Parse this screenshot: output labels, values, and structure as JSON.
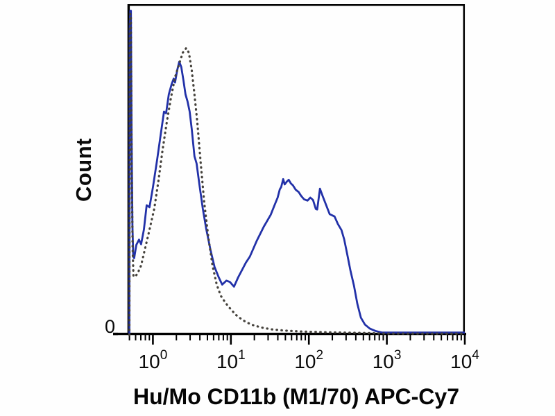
{
  "chart_data": {
    "type": "line",
    "subtype": "flow-cytometry-histogram-overlay",
    "title": "",
    "xlabel": "Hu/Mo CD11b (M1/70) APC-Cy7",
    "ylabel": "Count",
    "y_zero_label": "0",
    "x_scale": "log10",
    "x_tick_base": "10",
    "x_tick_exponents": [
      0,
      1,
      2,
      3,
      4
    ],
    "xlim_log10": [
      -0.324,
      4
    ],
    "ylim_fraction": [
      0,
      1
    ],
    "grid": false,
    "legend": "none",
    "axis_color": "#000000",
    "series": [
      {
        "name": "solid-blue-stained",
        "style": "solid",
        "color": "#2231a8",
        "points_log10x_yfrac": [
          [
            -0.302,
            0.0
          ],
          [
            -0.298,
            0.92
          ],
          [
            -0.291,
            0.98
          ],
          [
            -0.282,
            0.98
          ],
          [
            -0.273,
            0.6
          ],
          [
            -0.263,
            0.33
          ],
          [
            -0.252,
            0.236
          ],
          [
            -0.24,
            0.232
          ],
          [
            -0.213,
            0.272
          ],
          [
            -0.178,
            0.288
          ],
          [
            -0.151,
            0.274
          ],
          [
            -0.116,
            0.318
          ],
          [
            -0.08,
            0.392
          ],
          [
            -0.044,
            0.386
          ],
          [
            0.0,
            0.446
          ],
          [
            0.053,
            0.528
          ],
          [
            0.098,
            0.602
          ],
          [
            0.142,
            0.675
          ],
          [
            0.169,
            0.67
          ],
          [
            0.204,
            0.727
          ],
          [
            0.24,
            0.758
          ],
          [
            0.267,
            0.775
          ],
          [
            0.284,
            0.763
          ],
          [
            0.311,
            0.8
          ],
          [
            0.338,
            0.826
          ],
          [
            0.364,
            0.81
          ],
          [
            0.391,
            0.77
          ],
          [
            0.418,
            0.727
          ],
          [
            0.444,
            0.706
          ],
          [
            0.471,
            0.675
          ],
          [
            0.498,
            0.622
          ],
          [
            0.533,
            0.54
          ],
          [
            0.56,
            0.518
          ],
          [
            0.596,
            0.455
          ],
          [
            0.64,
            0.382
          ],
          [
            0.684,
            0.32
          ],
          [
            0.738,
            0.257
          ],
          [
            0.791,
            0.205
          ],
          [
            0.844,
            0.174
          ],
          [
            0.889,
            0.152
          ],
          [
            0.942,
            0.164
          ],
          [
            0.987,
            0.16
          ],
          [
            1.04,
            0.146
          ],
          [
            1.093,
            0.174
          ],
          [
            1.147,
            0.198
          ],
          [
            1.191,
            0.218
          ],
          [
            1.244,
            0.237
          ],
          [
            1.333,
            0.285
          ],
          [
            1.422,
            0.327
          ],
          [
            1.511,
            0.363
          ],
          [
            1.556,
            0.39
          ],
          [
            1.6,
            0.415
          ],
          [
            1.627,
            0.44
          ],
          [
            1.645,
            0.447
          ],
          [
            1.671,
            0.471
          ],
          [
            1.689,
            0.455
          ],
          [
            1.716,
            0.463
          ],
          [
            1.742,
            0.469
          ],
          [
            1.769,
            0.458
          ],
          [
            1.796,
            0.452
          ],
          [
            1.831,
            0.439
          ],
          [
            1.868,
            0.432
          ],
          [
            1.902,
            0.42
          ],
          [
            1.938,
            0.41
          ],
          [
            1.983,
            0.406
          ],
          [
            2.019,
            0.415
          ],
          [
            2.053,
            0.408
          ],
          [
            2.089,
            0.381
          ],
          [
            2.107,
            0.379
          ],
          [
            2.142,
            0.442
          ],
          [
            2.178,
            0.419
          ],
          [
            2.222,
            0.392
          ],
          [
            2.267,
            0.365
          ],
          [
            2.329,
            0.358
          ],
          [
            2.373,
            0.335
          ],
          [
            2.418,
            0.317
          ],
          [
            2.453,
            0.289
          ],
          [
            2.489,
            0.247
          ],
          [
            2.533,
            0.195
          ],
          [
            2.578,
            0.149
          ],
          [
            2.622,
            0.094
          ],
          [
            2.667,
            0.052
          ],
          [
            2.72,
            0.031
          ],
          [
            2.782,
            0.019
          ],
          [
            2.853,
            0.012
          ],
          [
            2.942,
            0.007
          ],
          [
            3.2,
            0.007
          ],
          [
            3.6,
            0.007
          ],
          [
            4.0,
            0.007
          ]
        ]
      },
      {
        "name": "dotted-gray-control",
        "style": "dotted",
        "color": "#45423c",
        "points_log10x_yfrac": [
          [
            -0.302,
            0.0
          ],
          [
            -0.297,
            0.9
          ],
          [
            -0.29,
            0.97
          ],
          [
            -0.283,
            0.97
          ],
          [
            -0.272,
            0.52
          ],
          [
            -0.26,
            0.26
          ],
          [
            -0.249,
            0.176
          ],
          [
            -0.222,
            0.178
          ],
          [
            -0.196,
            0.186
          ],
          [
            -0.151,
            0.21
          ],
          [
            -0.107,
            0.255
          ],
          [
            -0.044,
            0.318
          ],
          [
            0.018,
            0.382
          ],
          [
            0.071,
            0.466
          ],
          [
            0.124,
            0.56
          ],
          [
            0.178,
            0.643
          ],
          [
            0.231,
            0.717
          ],
          [
            0.284,
            0.779
          ],
          [
            0.338,
            0.82
          ],
          [
            0.382,
            0.853
          ],
          [
            0.427,
            0.867
          ],
          [
            0.462,
            0.853
          ],
          [
            0.498,
            0.8
          ],
          [
            0.533,
            0.727
          ],
          [
            0.569,
            0.643
          ],
          [
            0.613,
            0.52
          ],
          [
            0.658,
            0.4
          ],
          [
            0.711,
            0.295
          ],
          [
            0.764,
            0.21
          ],
          [
            0.818,
            0.152
          ],
          [
            0.871,
            0.118
          ],
          [
            0.933,
            0.096
          ],
          [
            0.996,
            0.078
          ],
          [
            1.067,
            0.06
          ],
          [
            1.156,
            0.044
          ],
          [
            1.262,
            0.031
          ],
          [
            1.378,
            0.023
          ],
          [
            1.511,
            0.017
          ],
          [
            1.689,
            0.013
          ],
          [
            1.911,
            0.01
          ],
          [
            2.222,
            0.008
          ],
          [
            2.667,
            0.006
          ],
          [
            3.022,
            0.004
          ],
          [
            3.5,
            0.004
          ],
          [
            4.0,
            0.004
          ]
        ]
      }
    ]
  }
}
